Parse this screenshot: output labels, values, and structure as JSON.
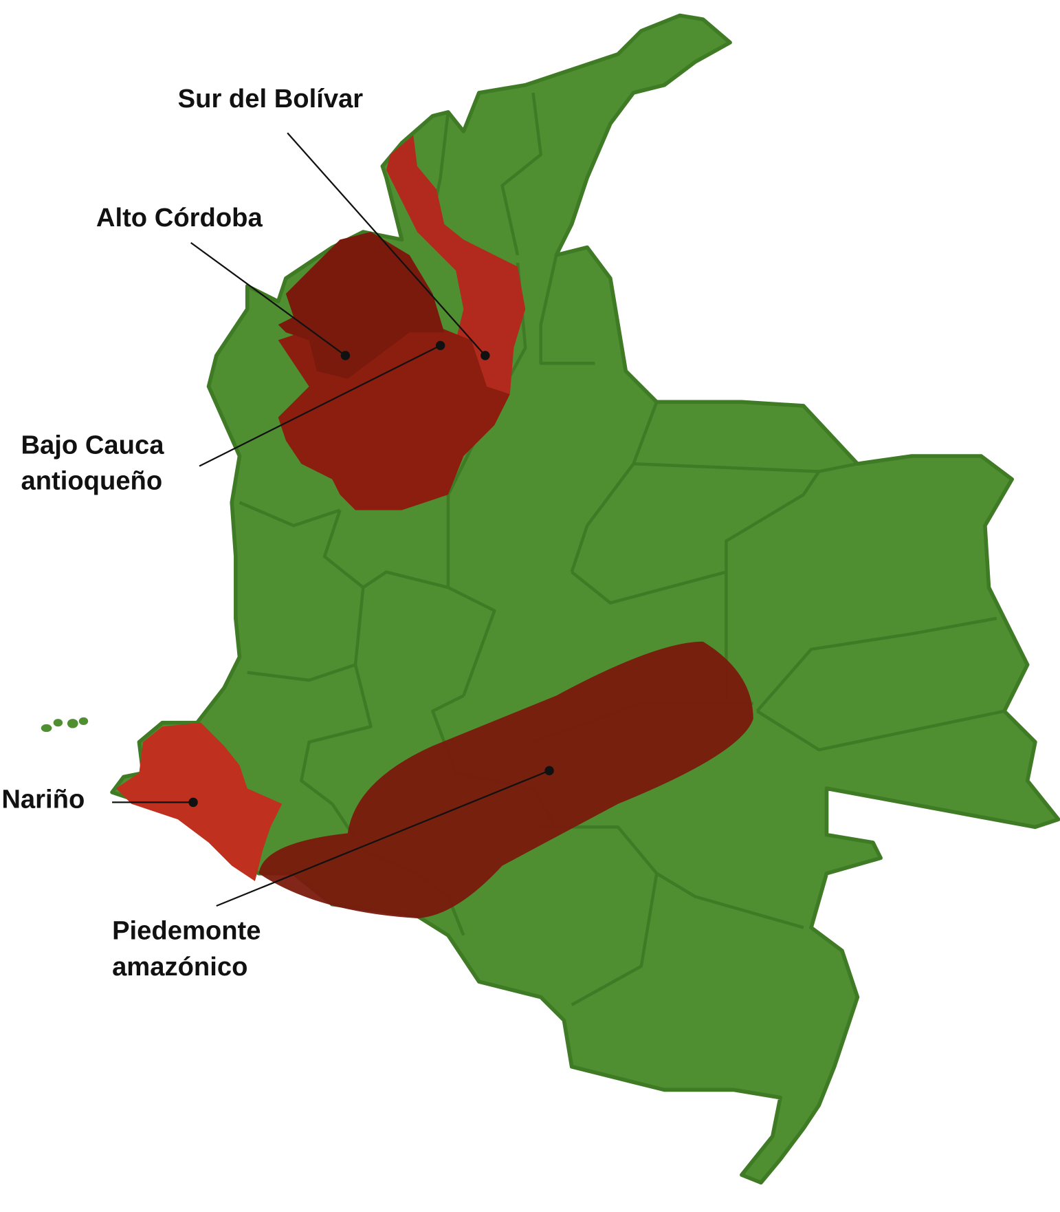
{
  "labels": [
    {
      "lines": [
        "Sur del Bolívar"
      ]
    },
    {
      "lines": [
        "Alto Córdoba"
      ]
    },
    {
      "lines": [
        "Bajo Cauca",
        "antioqueño"
      ]
    },
    {
      "lines": [
        "Nariño"
      ]
    },
    {
      "lines": [
        "Piedemonte",
        "amazónico"
      ]
    }
  ]
}
